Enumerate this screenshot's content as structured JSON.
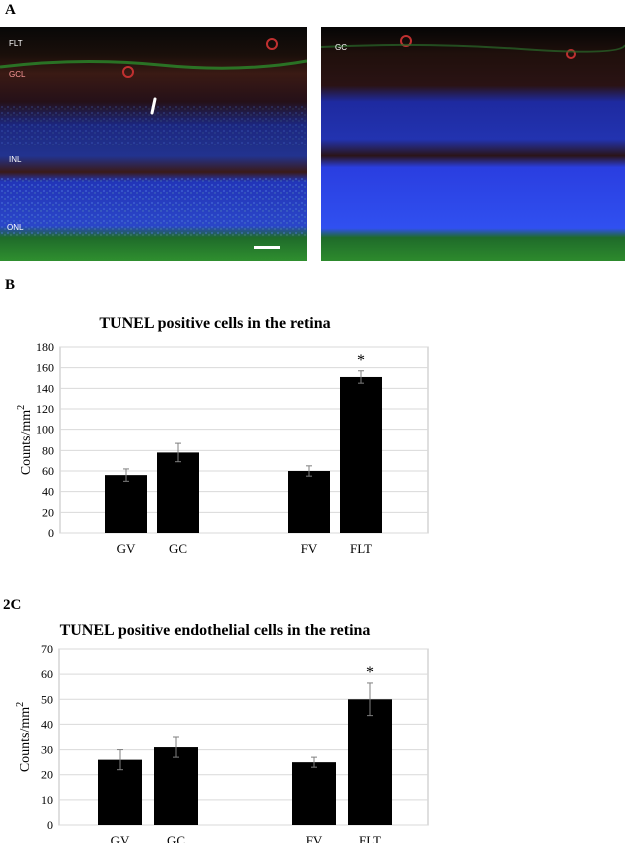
{
  "panel_labels": {
    "a": "A",
    "b": "B",
    "c": "2C"
  },
  "micrographs": {
    "left": {
      "labels": [
        "FLT",
        "GCL",
        "INL",
        "ONL"
      ]
    },
    "right": {
      "labels": [
        "GC"
      ]
    }
  },
  "colors": {
    "bar": "#000000",
    "grid": "#d9d9d9",
    "nucleus_blue": "#2a3fd0",
    "vessel_red": "#b3282a",
    "tunel_green": "#2e8b2e"
  },
  "chart_data": [
    {
      "type": "bar",
      "title": "TUNEL positive cells in the retina",
      "ylabel": "Counts/mm",
      "ylabel_sup": "2",
      "categories": [
        "GV",
        "GC",
        "",
        "FV",
        "FLT"
      ],
      "values": [
        56,
        78,
        null,
        60,
        151
      ],
      "errors": [
        6,
        9,
        null,
        5,
        6
      ],
      "ylim": [
        0,
        180
      ],
      "yticks": [
        0,
        20,
        40,
        60,
        80,
        100,
        120,
        140,
        160,
        180
      ],
      "grid": true,
      "annotations": [
        {
          "category": "FLT",
          "text": "*"
        }
      ]
    },
    {
      "type": "bar",
      "title": "TUNEL positive endothelial cells in the retina",
      "ylabel": "Counts/mm",
      "ylabel_sup": "2",
      "categories": [
        "GV",
        "GC",
        "",
        "FV",
        "FLT"
      ],
      "values": [
        26,
        31,
        null,
        25,
        50
      ],
      "errors": [
        4,
        4,
        null,
        2,
        6.5
      ],
      "ylim": [
        0,
        70
      ],
      "yticks": [
        0,
        10,
        20,
        30,
        40,
        50,
        60,
        70
      ],
      "grid": true,
      "annotations": [
        {
          "category": "FLT",
          "text": "*"
        }
      ]
    }
  ]
}
